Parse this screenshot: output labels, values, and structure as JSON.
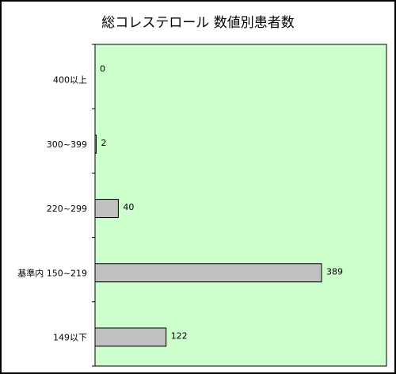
{
  "chart_data": {
    "type": "bar",
    "orientation": "horizontal",
    "title": "総コレステロール 数値別患者数",
    "categories": [
      "400以上",
      "300~399",
      "220~299",
      "基準内 150~219",
      "149以下"
    ],
    "values": [
      0,
      2,
      40,
      389,
      122
    ],
    "xlim": [
      0,
      389
    ],
    "xlabel": "",
    "ylabel": "",
    "grid": false,
    "legend": "none",
    "colors": {
      "plot_background": "#ccffcc",
      "bar_fill": "#c0c0c0",
      "bar_stroke": "#000000",
      "frame": "#000000"
    }
  }
}
